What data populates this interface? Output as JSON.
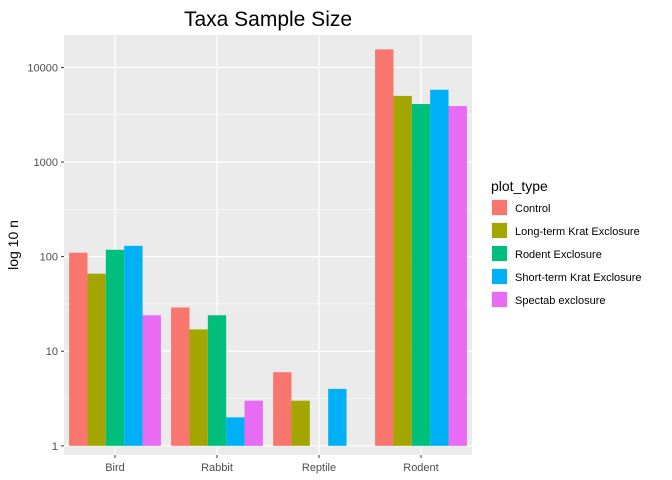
{
  "chart_data": {
    "type": "bar",
    "title": "Taxa Sample Size",
    "xlabel": "",
    "ylabel": "log 10 n",
    "yscale": "log10",
    "ylim": [
      0.8,
      22000
    ],
    "yticks": [
      1,
      10,
      100,
      1000,
      10000
    ],
    "ytick_labels": [
      "1",
      "10",
      "100",
      "1000",
      "10000"
    ],
    "categories": [
      "Bird",
      "Rabbit",
      "Reptile",
      "Rodent"
    ],
    "grid": true,
    "legend": {
      "title": "plot_type",
      "placement": "right"
    },
    "series": [
      {
        "name": "Control",
        "color": "#F8766D",
        "values": [
          110,
          29,
          6,
          15500
        ]
      },
      {
        "name": "Long-term Krat Exclosure",
        "color": "#A3A500",
        "values": [
          66,
          17,
          3,
          5000
        ]
      },
      {
        "name": "Rodent Exclosure",
        "color": "#00BF7D",
        "values": [
          118,
          24,
          null,
          4100
        ]
      },
      {
        "name": "Short-term Krat Exclosure",
        "color": "#00B0F6",
        "values": [
          130,
          2,
          4,
          5800
        ]
      },
      {
        "name": "Spectab exclosure",
        "color": "#E76BF3",
        "values": [
          24,
          3,
          null,
          3900
        ]
      }
    ]
  }
}
